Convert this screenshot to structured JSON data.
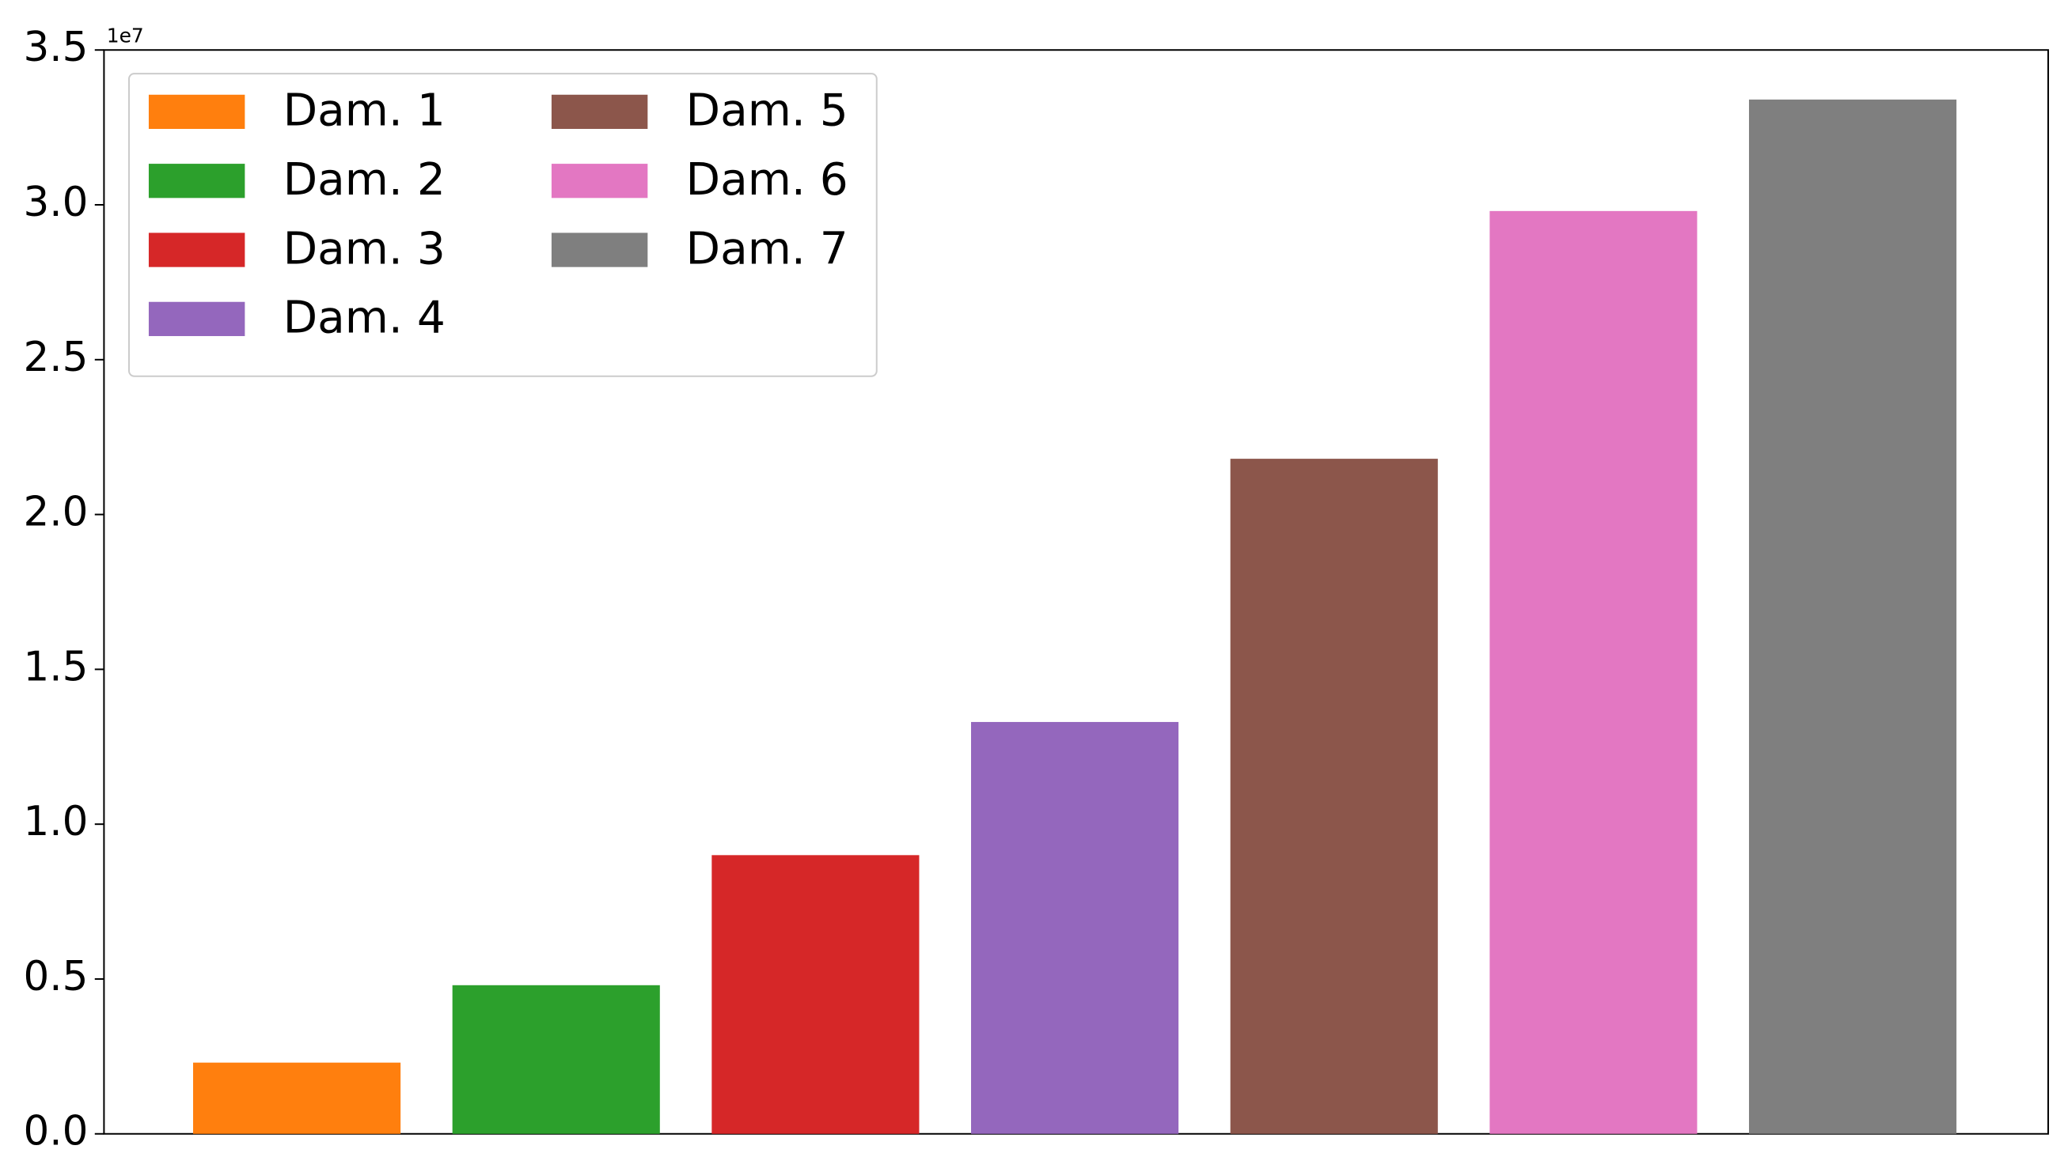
{
  "chart_data": {
    "type": "bar",
    "offset_label": "1e7",
    "series": [
      {
        "name": "Dam. 1",
        "color": "#ff7f0e",
        "values": [
          0.23
        ]
      },
      {
        "name": "Dam. 2",
        "color": "#2ca02c",
        "values": [
          0.48
        ]
      },
      {
        "name": "Dam. 3",
        "color": "#d62728",
        "values": [
          0.9
        ]
      },
      {
        "name": "Dam. 4",
        "color": "#9467bd",
        "values": [
          1.33
        ]
      },
      {
        "name": "Dam. 5",
        "color": "#8c564b",
        "values": [
          2.18
        ]
      },
      {
        "name": "Dam. 6",
        "color": "#e377c2",
        "values": [
          2.98
        ]
      },
      {
        "name": "Dam. 7",
        "color": "#7f7f7f",
        "values": [
          3.34
        ]
      }
    ],
    "ylim": [
      0,
      3.5
    ],
    "yticks": [
      {
        "value": 0,
        "label": "0.0"
      },
      0.5,
      {
        "value": 1,
        "label": "1.0"
      },
      1.5,
      {
        "value": 2,
        "label": "2.0"
      },
      2.5,
      {
        "value": 3,
        "label": "3.0"
      },
      3.5
    ],
    "legend": "upper left",
    "legend_columns": 2,
    "grid": false
  }
}
